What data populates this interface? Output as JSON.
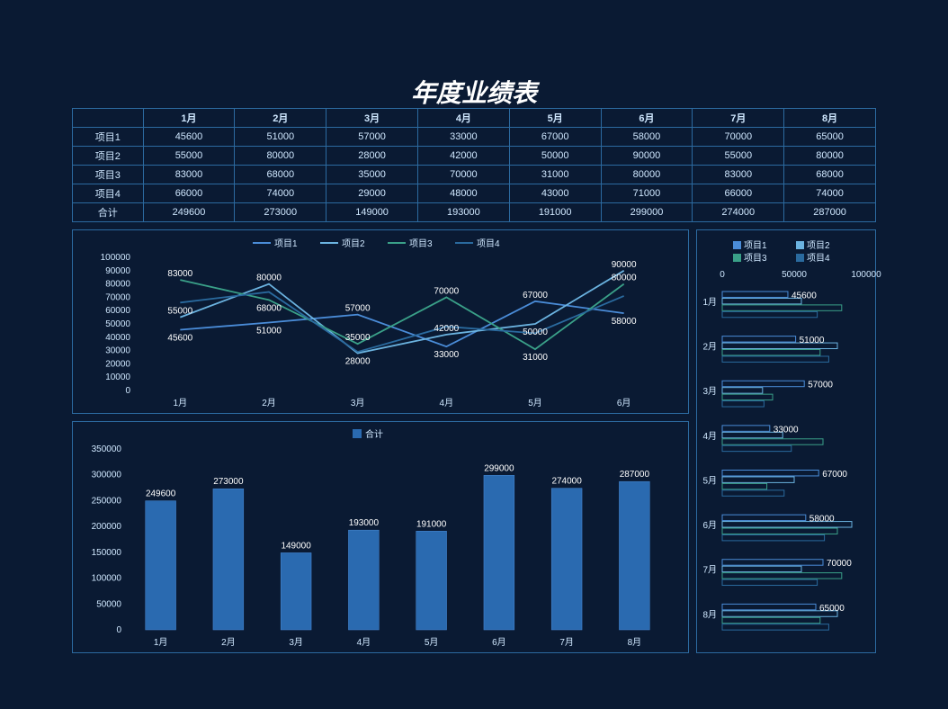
{
  "title": "年度业绩表",
  "months": [
    "1月",
    "2月",
    "3月",
    "4月",
    "5月",
    "6月",
    "7月",
    "8月"
  ],
  "series": [
    {
      "name": "项目1",
      "color": "#4a8cd8",
      "values": [
        45600,
        51000,
        57000,
        33000,
        67000,
        58000,
        70000,
        65000
      ]
    },
    {
      "name": "项目2",
      "color": "#6bb3e0",
      "values": [
        55000,
        80000,
        28000,
        42000,
        50000,
        90000,
        55000,
        80000
      ]
    },
    {
      "name": "项目3",
      "color": "#3aa088",
      "values": [
        83000,
        68000,
        35000,
        70000,
        31000,
        80000,
        83000,
        68000
      ]
    },
    {
      "name": "项目4",
      "color": "#2a6a9e",
      "values": [
        66000,
        74000,
        29000,
        48000,
        43000,
        71000,
        66000,
        74000
      ]
    }
  ],
  "totals": {
    "name": "合计",
    "values": [
      249600,
      273000,
      149000,
      193000,
      191000,
      299000,
      274000,
      287000
    ]
  },
  "line_chart": {
    "months_shown": 6,
    "ylim": [
      0,
      100000
    ],
    "ytick_step": 10000,
    "series_idx": [
      0,
      1,
      2,
      3
    ],
    "label_points": [
      {
        "s": 0,
        "m": 0,
        "v": 45600,
        "dy": 12
      },
      {
        "s": 0,
        "m": 1,
        "v": 51000,
        "dy": 12
      },
      {
        "s": 0,
        "m": 2,
        "v": 57000,
        "dy": -4
      },
      {
        "s": 0,
        "m": 3,
        "v": 33000,
        "dy": 12
      },
      {
        "s": 0,
        "m": 4,
        "v": 67000,
        "dy": -4
      },
      {
        "s": 0,
        "m": 5,
        "v": 58000,
        "dy": 12
      },
      {
        "s": 1,
        "m": 0,
        "v": 55000,
        "dy": -4
      },
      {
        "s": 1,
        "m": 1,
        "v": 80000,
        "dy": -4
      },
      {
        "s": 1,
        "m": 2,
        "v": 28000,
        "dy": 12
      },
      {
        "s": 1,
        "m": 3,
        "v": 42000,
        "dy": -4
      },
      {
        "s": 1,
        "m": 4,
        "v": 50000,
        "dy": 12
      },
      {
        "s": 1,
        "m": 5,
        "v": 90000,
        "dy": -4
      },
      {
        "s": 2,
        "m": 0,
        "v": 83000,
        "dy": -4
      },
      {
        "s": 2,
        "m": 1,
        "v": 68000,
        "dy": 12
      },
      {
        "s": 2,
        "m": 2,
        "v": 35000,
        "dy": -4
      },
      {
        "s": 2,
        "m": 3,
        "v": 70000,
        "dy": -4
      },
      {
        "s": 2,
        "m": 4,
        "v": 31000,
        "dy": 12
      },
      {
        "s": 2,
        "m": 5,
        "v": 80000,
        "dy": -4
      }
    ]
  },
  "bar_chart": {
    "ylim": [
      0,
      350000
    ],
    "ytick_step": 50000,
    "bar_color": "#2a6ab0",
    "legend": "合计"
  },
  "side_chart": {
    "xlim": [
      0,
      100000
    ],
    "xticks": [
      0,
      50000,
      100000
    ],
    "legend_pos": "top",
    "label_series": 0
  },
  "colors": {
    "bg": "#0a1a33",
    "border": "#2c6aa0",
    "text": "#d0e8ff",
    "label": "#ffffff"
  }
}
